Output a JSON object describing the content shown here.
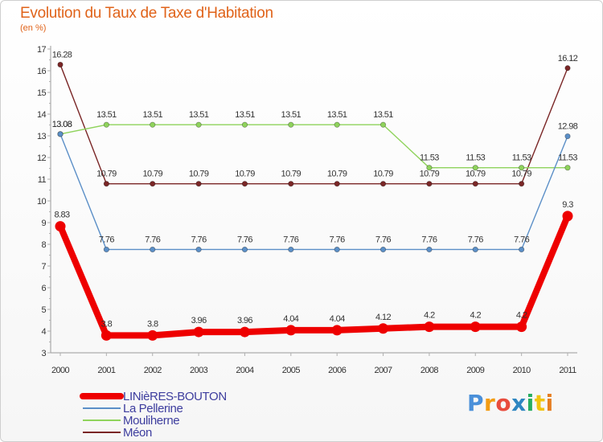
{
  "chart_data": {
    "type": "line",
    "title": "Evolution du Taux de Taxe d'Habitation",
    "subtitle": "(en %)",
    "categories": [
      "2000",
      "2001",
      "2002",
      "2003",
      "2004",
      "2005",
      "2006",
      "2007",
      "2008",
      "2009",
      "2010",
      "2011"
    ],
    "y_ticks": [
      "3",
      "4",
      "5",
      "6",
      "7",
      "8",
      "9",
      "10",
      "11",
      "12",
      "13",
      "14",
      "15",
      "16",
      "17"
    ],
    "ylim": [
      3,
      17
    ],
    "series": [
      {
        "name": "LINièRES-BOUTON",
        "color": "#ee0000",
        "values": [
          8.83,
          3.8,
          3.8,
          3.96,
          3.96,
          4.04,
          4.04,
          4.12,
          4.2,
          4.2,
          4.2,
          9.3
        ],
        "labels": [
          "8.83",
          "3.8",
          "3.8",
          "3.96",
          "3.96",
          "4.04",
          "4.04",
          "4.12",
          "4.2",
          "4.2",
          "4.2",
          "9.3"
        ]
      },
      {
        "name": "La Pellerine",
        "color": "#5b8fc7",
        "values": [
          13.08,
          7.76,
          7.76,
          7.76,
          7.76,
          7.76,
          7.76,
          7.76,
          7.76,
          7.76,
          7.76,
          12.98
        ],
        "labels": [
          "13.08",
          "7.76",
          "7.76",
          "7.76",
          "7.76",
          "7.76",
          "7.76",
          "7.76",
          "7.76",
          "7.76",
          "7.76",
          "12.98"
        ]
      },
      {
        "name": "Mouliherne",
        "color": "#8fd35c",
        "values": [
          13.08,
          13.51,
          13.51,
          13.51,
          13.51,
          13.51,
          13.51,
          13.51,
          11.53,
          11.53,
          11.53,
          11.53
        ],
        "labels": [
          "13.08",
          "13.51",
          "13.51",
          "13.51",
          "13.51",
          "13.51",
          "13.51",
          "13.51",
          "11.53",
          "11.53",
          "11.53",
          "11.53"
        ]
      },
      {
        "name": "Méon",
        "color": "#7a2626",
        "values": [
          16.28,
          10.79,
          10.79,
          10.79,
          10.79,
          10.79,
          10.79,
          10.79,
          10.79,
          10.79,
          10.79,
          16.12
        ],
        "labels": [
          "16.28",
          "10.79",
          "10.79",
          "10.79",
          "10.79",
          "10.79",
          "10.79",
          "10.79",
          "10.79",
          "10.79",
          "10.79",
          "16.12"
        ]
      }
    ],
    "legend": "bottom-left",
    "grid": false
  },
  "logo": {
    "letters": [
      "P",
      "r",
      "o",
      "x",
      "i",
      "t",
      "i"
    ],
    "colors": [
      "#4a90d9",
      "#f39c12",
      "#e84c3d",
      "#2e86c1",
      "#27ae60",
      "#f1c40f",
      "#e67e22"
    ]
  }
}
